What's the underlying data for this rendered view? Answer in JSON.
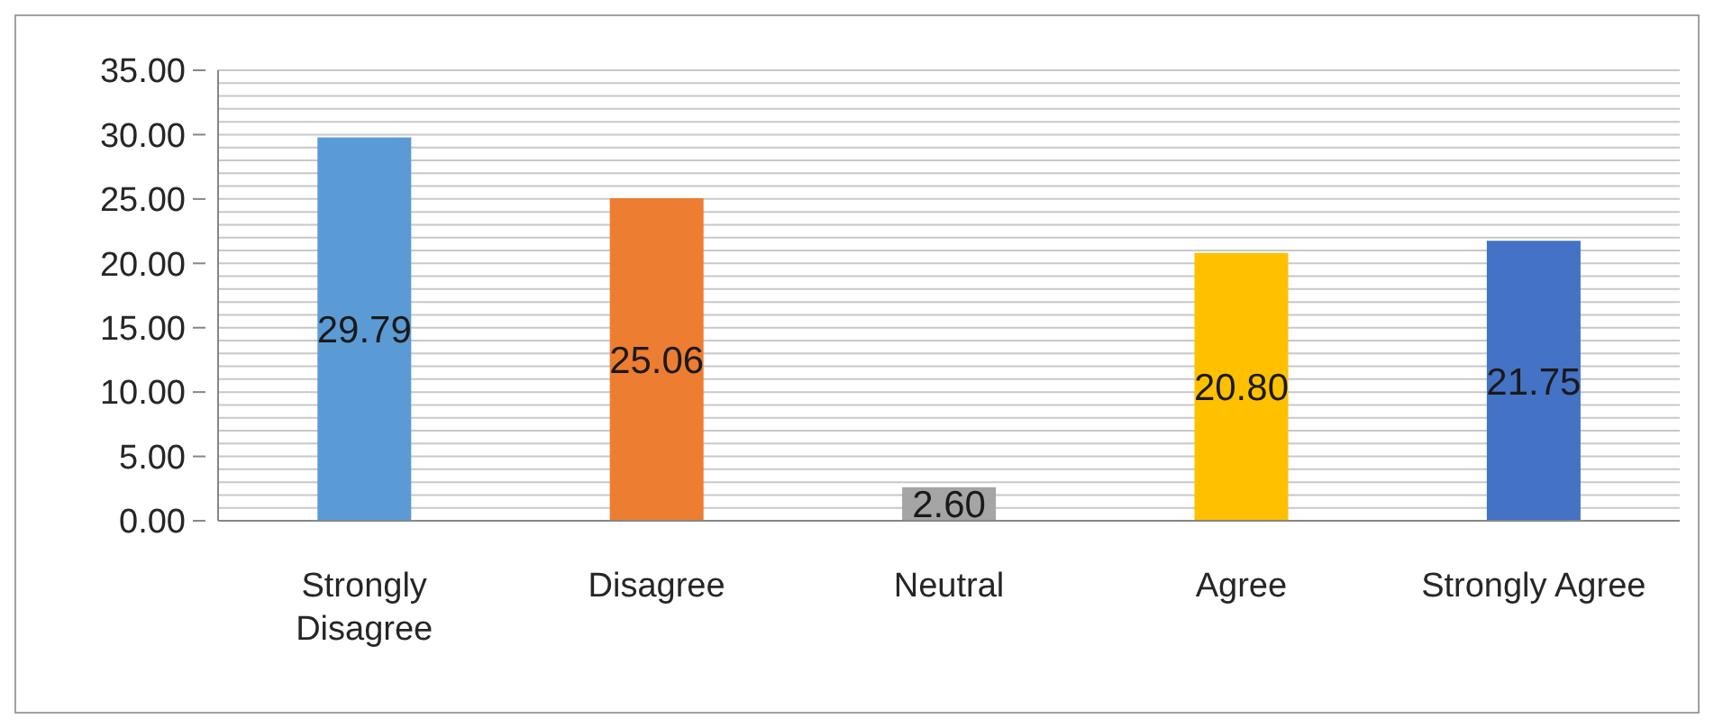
{
  "chart_data": {
    "type": "bar",
    "categories": [
      "Strongly Disagree",
      "Disagree",
      "Neutral",
      "Agree",
      "Strongly Agree"
    ],
    "values": [
      29.79,
      25.06,
      2.6,
      20.8,
      21.75
    ],
    "value_labels": [
      "29.79",
      "25.06",
      "2.60",
      "20.80",
      "21.75"
    ],
    "colors": [
      "#5b9bd5",
      "#ed7d31",
      "#a5a5a5",
      "#ffc000",
      "#4472c4"
    ],
    "ylim": [
      0,
      35
    ],
    "yticks": [
      {
        "value": 0,
        "label": "0.00"
      },
      {
        "value": 1,
        "label": null
      },
      {
        "value": 2,
        "label": null
      },
      {
        "value": 3,
        "label": null
      },
      {
        "value": 4,
        "label": null
      },
      {
        "value": 5,
        "label": "5.00"
      },
      {
        "value": 6,
        "label": null
      },
      {
        "value": 7,
        "label": null
      },
      {
        "value": 8,
        "label": null
      },
      {
        "value": 9,
        "label": null
      },
      {
        "value": 10,
        "label": "10.00"
      },
      {
        "value": 11,
        "label": null
      },
      {
        "value": 12,
        "label": null
      },
      {
        "value": 13,
        "label": null
      },
      {
        "value": 14,
        "label": null
      },
      {
        "value": 15,
        "label": "15.00"
      },
      {
        "value": 16,
        "label": null
      },
      {
        "value": 17,
        "label": null
      },
      {
        "value": 18,
        "label": null
      },
      {
        "value": 19,
        "label": null
      },
      {
        "value": 20,
        "label": "20.00"
      },
      {
        "value": 21,
        "label": null
      },
      {
        "value": 22,
        "label": null
      },
      {
        "value": 23,
        "label": null
      },
      {
        "value": 24,
        "label": null
      },
      {
        "value": 25,
        "label": "25.00"
      },
      {
        "value": 26,
        "label": null
      },
      {
        "value": 27,
        "label": null
      },
      {
        "value": 28,
        "label": null
      },
      {
        "value": 29,
        "label": null
      },
      {
        "value": 30,
        "label": "30.00"
      },
      {
        "value": 31,
        "label": null
      },
      {
        "value": 32,
        "label": null
      },
      {
        "value": 33,
        "label": null
      },
      {
        "value": 34,
        "label": null
      },
      {
        "value": 35,
        "label": "35.00"
      }
    ],
    "grid": "y"
  }
}
